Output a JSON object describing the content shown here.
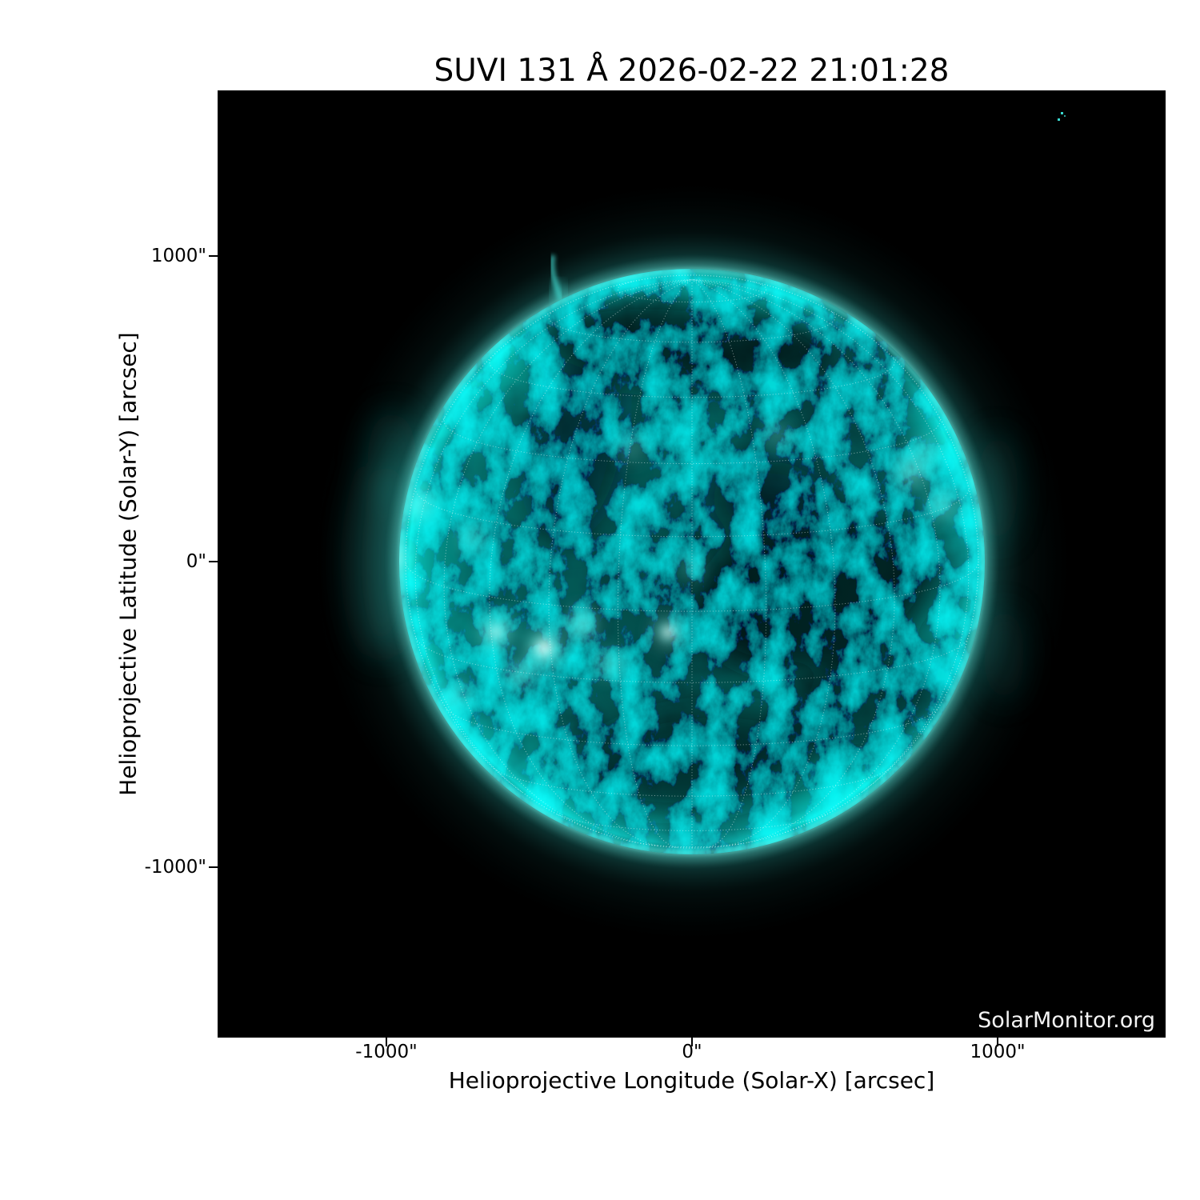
{
  "title": "SUVI 131 Å 2026-02-22 21:01:28",
  "watermark": "SolarMonitor.org",
  "axes": {
    "x": {
      "label": "Helioprojective Longitude (Solar-X) [arcsec]",
      "ticks": [
        "-1000\"",
        "0\"",
        "1000\""
      ]
    },
    "y": {
      "label": "Helioprojective Latitude (Solar-Y) [arcsec]",
      "ticks": [
        "1000\"",
        "0\"",
        "-1000\""
      ]
    }
  },
  "chart_data": {
    "type": "heatmap",
    "title": "SUVI 131 Å 2026-02-22 21:01:28",
    "xlabel": "Helioprojective Longitude (Solar-X) [arcsec]",
    "ylabel": "Helioprojective Latitude (Solar-Y) [arcsec]",
    "xlim": [
      -1550,
      1550
    ],
    "ylim": [
      -1550,
      1550
    ],
    "x_ticks_arcsec": [
      -1000,
      0,
      1000
    ],
    "y_ticks_arcsec": [
      -1000,
      0,
      1000
    ],
    "grid": "dotted heliographic lat-lon grid overlay, ~15 degree spacing",
    "legend": "none",
    "instrument": "SUVI",
    "wavelength": "131 Å",
    "observation_time": "2026-02-22 21:01:28",
    "solar_disk": {
      "center_arcsec": [
        0,
        0
      ],
      "radius_arcsec": 960
    },
    "features": [
      "bright active regions on east (left) limb near Solar-Y 0 to 300",
      "bright active-region band lower-left of disk center",
      "dark coronal hole region west (right) of disk center",
      "dark filament channels upper-center of disk",
      "bright active region near upper west limb",
      "small prominence above northeast limb near (-450, 950)",
      "faint cyan noise specks in upper-right corner of frame"
    ],
    "colors": {
      "background": "#000000",
      "disk_mid": "#0f6b66",
      "bright_plage": "#7efbef",
      "limb_ring": "#52ebdf",
      "grid_lines": "#ffffff",
      "text": "#000000",
      "watermark_text": "#f4f4f4"
    }
  }
}
